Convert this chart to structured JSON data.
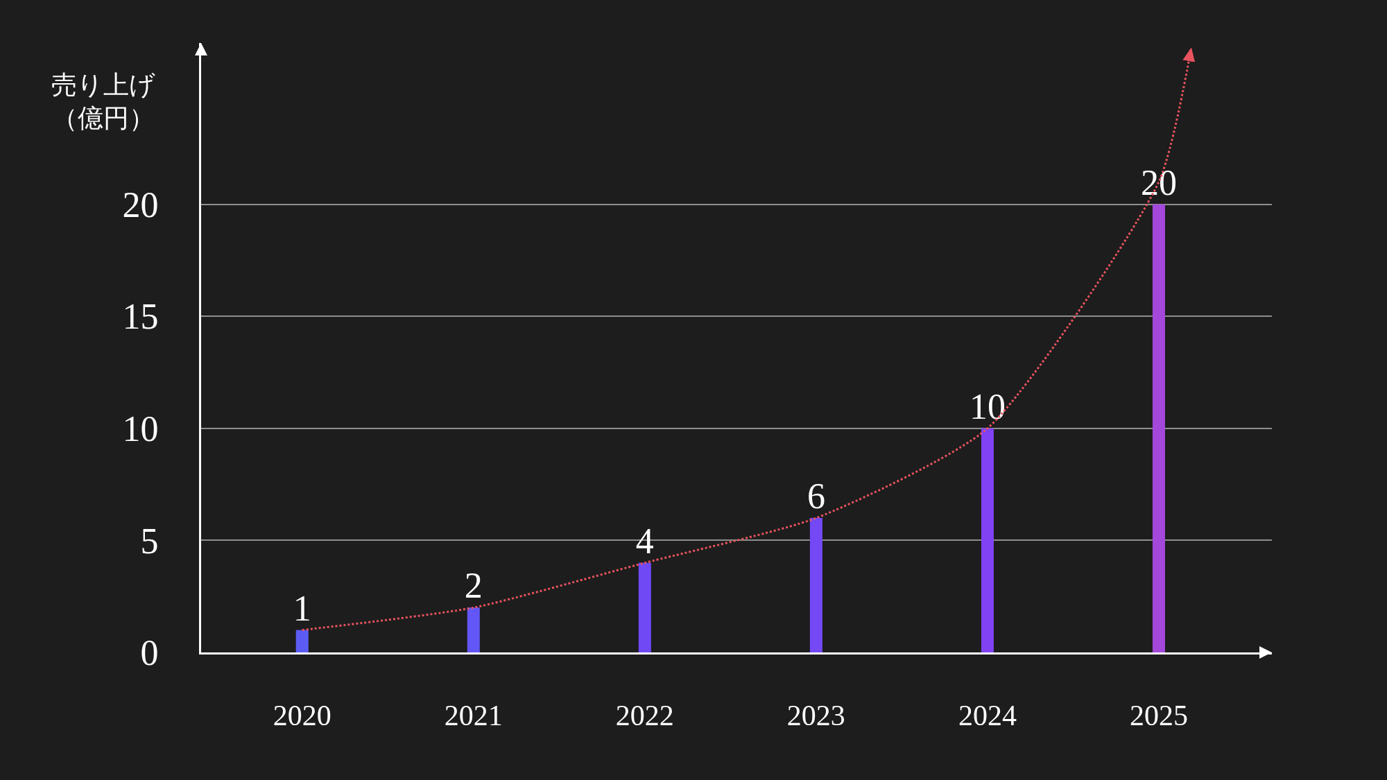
{
  "chart_data": {
    "type": "bar",
    "ylabel": "売り上げ（億円）",
    "x": [
      2020,
      2021,
      2022,
      2023,
      2024,
      2025
    ],
    "xlim": [
      2019.41,
      2025.66
    ],
    "xticks": [
      2020,
      2021,
      2022,
      2023,
      2024,
      2025
    ],
    "ylim": [
      0,
      27.2
    ],
    "yticks": [
      0,
      5,
      10,
      15,
      20
    ],
    "grid": "y",
    "series": [
      {
        "values": [
          1,
          2,
          4,
          6,
          10,
          20
        ],
        "value_labels": [
          "1",
          "2",
          "4",
          "6",
          "10",
          "20"
        ],
        "colors": [
          "#5c5cf5",
          "#6356f6",
          "#7049f4",
          "#7448f4",
          "#8042f2",
          "#a448dc"
        ]
      },
      {
        "type": "line",
        "x": [
          2020,
          2021,
          2022,
          2023,
          2024,
          2025,
          2025.19
        ],
        "values": [
          1,
          2,
          4,
          6,
          10,
          21,
          27
        ],
        "color": "#e8535e",
        "line_style": "dotted",
        "marker": "none"
      }
    ]
  }
}
